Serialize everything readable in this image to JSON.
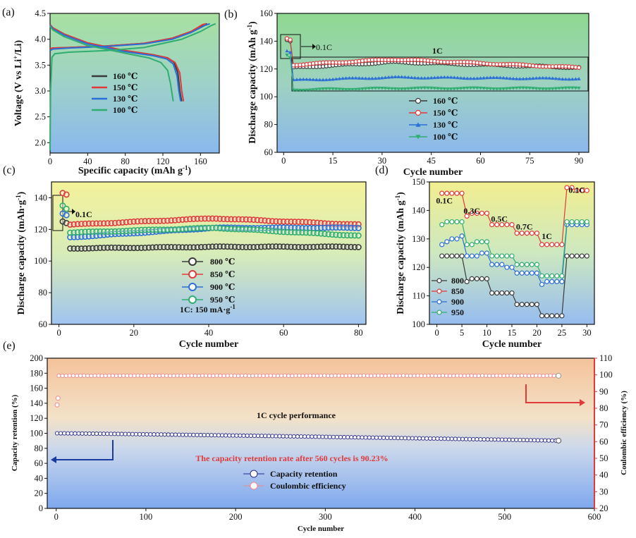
{
  "panels": {
    "a": "(a)",
    "b": "(b)",
    "c": "(c)",
    "d": "(d)",
    "e": "(e)"
  },
  "colors": {
    "160": "#3a3a3a",
    "150": "#e03a3a",
    "130": "#2a6fd6",
    "100": "#2fae6f",
    "800": "#3a3a3a",
    "850": "#e03a3a",
    "900": "#2a6fd6",
    "950": "#2fae6f",
    "retention": "#2a2a8c",
    "ce": "#f08a8a",
    "blueArrow": "#1a3aa0",
    "redAxis": "#e03a3a"
  },
  "chart_data": [
    {
      "id": "a",
      "type": "line",
      "title": "",
      "xlabel": "Specific capacity (mAh g",
      "xlabel_sup": "-1",
      "ylabel": "Voltage (V vs Li",
      "ylabel_sup": "+",
      "ylabel_tail": "/Li)",
      "xlim": [
        0,
        180
      ],
      "ylim": [
        1.8,
        4.5
      ],
      "xticks": [
        0,
        40,
        80,
        120,
        160
      ],
      "yticks": [
        2.0,
        2.5,
        3.0,
        3.5,
        4.0,
        4.5
      ],
      "xtick_labels": [
        "0",
        "40",
        "80",
        "120",
        "160"
      ],
      "ytick_labels": [
        "2.0",
        "2.5",
        "3.0",
        "3.5",
        "4.0",
        "4.5"
      ],
      "legend": [
        "160 ℃",
        "150 ℃",
        "130 ℃",
        "100 ℃"
      ],
      "series": [
        {
          "name": "160 ℃",
          "key": "160",
          "charge": [
            [
              0,
              3.82
            ],
            [
              3,
              3.83
            ],
            [
              20,
              3.84
            ],
            [
              60,
              3.87
            ],
            [
              100,
              3.92
            ],
            [
              130,
              4.02
            ],
            [
              150,
              4.15
            ],
            [
              163,
              4.28
            ],
            [
              167,
              4.3
            ]
          ],
          "discharge": [
            [
              0,
              4.28
            ],
            [
              3,
              4.22
            ],
            [
              15,
              4.1
            ],
            [
              40,
              3.93
            ],
            [
              80,
              3.78
            ],
            [
              110,
              3.7
            ],
            [
              125,
              3.64
            ],
            [
              132,
              3.55
            ],
            [
              136,
              3.35
            ],
            [
              138,
              3.0
            ],
            [
              140,
              2.8
            ]
          ]
        },
        {
          "name": "150 ℃",
          "key": "150",
          "charge": [
            [
              0,
              3.82
            ],
            [
              3,
              3.83
            ],
            [
              20,
              3.84
            ],
            [
              60,
              3.87
            ],
            [
              100,
              3.92
            ],
            [
              130,
              4.02
            ],
            [
              150,
              4.15
            ],
            [
              162,
              4.28
            ],
            [
              166,
              4.3
            ]
          ],
          "discharge": [
            [
              0,
              4.28
            ],
            [
              3,
              4.22
            ],
            [
              15,
              4.1
            ],
            [
              40,
              3.93
            ],
            [
              80,
              3.78
            ],
            [
              110,
              3.7
            ],
            [
              125,
              3.64
            ],
            [
              133,
              3.55
            ],
            [
              138,
              3.35
            ],
            [
              140,
              3.0
            ],
            [
              142,
              2.8
            ]
          ]
        },
        {
          "name": "130 ℃",
          "key": "130",
          "charge": [
            [
              0,
              3.78
            ],
            [
              3,
              3.81
            ],
            [
              20,
              3.83
            ],
            [
              60,
              3.86
            ],
            [
              100,
              3.91
            ],
            [
              130,
              4.0
            ],
            [
              150,
              4.13
            ],
            [
              165,
              4.27
            ],
            [
              170,
              4.3
            ]
          ],
          "discharge": [
            [
              0,
              4.27
            ],
            [
              3,
              4.2
            ],
            [
              15,
              4.08
            ],
            [
              40,
              3.91
            ],
            [
              80,
              3.76
            ],
            [
              110,
              3.68
            ],
            [
              124,
              3.62
            ],
            [
              131,
              3.52
            ],
            [
              135,
              3.3
            ],
            [
              137,
              3.0
            ],
            [
              139,
              2.8
            ]
          ]
        },
        {
          "name": "100 ℃",
          "key": "100",
          "charge": [
            [
              0,
              1.85
            ],
            [
              0.5,
              3.0
            ],
            [
              2,
              3.65
            ],
            [
              5,
              3.72
            ],
            [
              20,
              3.75
            ],
            [
              60,
              3.78
            ],
            [
              100,
              3.84
            ],
            [
              140,
              4.0
            ],
            [
              160,
              4.15
            ],
            [
              172,
              4.27
            ],
            [
              176,
              4.3
            ]
          ],
          "discharge": [
            [
              0,
              4.25
            ],
            [
              3,
              4.18
            ],
            [
              15,
              4.05
            ],
            [
              40,
              3.88
            ],
            [
              80,
              3.73
            ],
            [
              105,
              3.64
            ],
            [
              118,
              3.55
            ],
            [
              125,
              3.4
            ],
            [
              128,
              3.15
            ],
            [
              130,
              2.92
            ],
            [
              131,
              2.8
            ]
          ]
        }
      ]
    },
    {
      "id": "b",
      "type": "line",
      "xlabel": "Cycle number",
      "ylabel": "Discharge capacity (mAh g",
      "ylabel_sup": "-1",
      "xlim": [
        -2,
        93
      ],
      "ylim": [
        60,
        160
      ],
      "xticks": [
        0,
        15,
        30,
        45,
        60,
        75,
        90
      ],
      "yticks": [
        60,
        80,
        100,
        120,
        140,
        160
      ],
      "xtick_labels": [
        "0",
        "15",
        "30",
        "45",
        "60",
        "75",
        "90"
      ],
      "ytick_labels": [
        "60",
        "80",
        "100",
        "120",
        "140",
        "160"
      ],
      "annotations": {
        "rate1": "0.1C",
        "rate2": "1C"
      },
      "legend": [
        "160 ℃",
        "150 ℃",
        "130 ℃",
        "100 ℃"
      ],
      "series": [
        {
          "name": "160 ℃",
          "key": "160",
          "first": [
            141,
            140
          ],
          "start": 121,
          "plateau": 125,
          "end": 121,
          "marker": "circle"
        },
        {
          "name": "150 ℃",
          "key": "150",
          "first": [
            142,
            141
          ],
          "start": 123,
          "plateau": 127,
          "end": 121,
          "marker": "circle"
        },
        {
          "name": "130 ℃",
          "key": "130",
          "first": [
            133,
            132
          ],
          "start": 112,
          "plateau": 114,
          "end": 113,
          "marker": "triangle"
        },
        {
          "name": "100 ℃",
          "key": "100",
          "first": [
            130,
            128
          ],
          "start": 105,
          "plateau": 106,
          "end": 106,
          "marker": "invtriangle"
        }
      ]
    },
    {
      "id": "c",
      "type": "scatter",
      "xlabel": "Cycle number",
      "ylabel": "Discharge capacity (mAh·g",
      "ylabel_sup": "-1",
      "ylabel_tail": ")",
      "xlim": [
        -2,
        82
      ],
      "ylim": [
        60,
        150
      ],
      "xticks": [
        0,
        20,
        40,
        60,
        80
      ],
      "yticks": [
        60,
        80,
        100,
        120,
        140
      ],
      "xtick_labels": [
        "0",
        "20",
        "40",
        "60",
        "80"
      ],
      "ytick_labels": [
        "60",
        "80",
        "100",
        "120",
        "140"
      ],
      "annotations": {
        "rate": "0.1C",
        "note": "1C: 150 mA·g"
      },
      "legend": [
        "800 ℃",
        "850 ℃",
        "900 ℃",
        "950 ℃"
      ],
      "series": [
        {
          "name": "800 ℃",
          "key": "800",
          "first": [
            125,
            124
          ],
          "start": 108,
          "mid": 109,
          "end": 109
        },
        {
          "name": "850 ℃",
          "key": "850",
          "first": [
            143,
            142
          ],
          "start": 123,
          "mid": 127,
          "end": 123
        },
        {
          "name": "900 ℃",
          "key": "900",
          "first": [
            130,
            129
          ],
          "start": 115,
          "mid": 121,
          "end": 121
        },
        {
          "name": "950 ℃",
          "key": "950",
          "first": [
            135,
            133
          ],
          "start": 118,
          "mid": 121,
          "end": 116
        }
      ]
    },
    {
      "id": "d",
      "type": "line",
      "xlabel": "Cycle number",
      "ylabel": "Discharge capacity (mAh g",
      "ylabel_sup": "-1",
      "xlim": [
        -1.5,
        31.5
      ],
      "ylim": [
        100,
        150
      ],
      "xticks": [
        0,
        5,
        10,
        15,
        20,
        25,
        30
      ],
      "yticks": [
        100,
        110,
        120,
        130,
        140,
        150
      ],
      "xtick_labels": [
        "0",
        "5",
        "10",
        "15",
        "20",
        "25",
        "30"
      ],
      "ytick_labels": [
        "100",
        "110",
        "120",
        "130",
        "140",
        "150"
      ],
      "rate_labels": [
        "0.1C",
        "0.3C",
        "0.5C",
        "0.7C",
        "1C",
        "0.1C"
      ],
      "legend": [
        "800",
        "850",
        "900",
        "950"
      ],
      "series": [
        {
          "name": "800",
          "key": "800",
          "values": [
            124,
            124,
            124,
            124,
            124,
            115,
            116,
            116,
            116,
            116,
            111,
            111,
            111,
            111,
            111,
            107,
            107,
            107,
            107,
            107,
            103,
            103,
            103,
            103,
            103,
            124,
            124,
            124,
            124,
            124
          ]
        },
        {
          "name": "850",
          "key": "850",
          "values": [
            146,
            146,
            146,
            146,
            146,
            138,
            139,
            139,
            139,
            139,
            135,
            135,
            135,
            135,
            135,
            132,
            132,
            132,
            132,
            132,
            128,
            128,
            128,
            128,
            128,
            148,
            148,
            147,
            147,
            147
          ]
        },
        {
          "name": "900",
          "key": "900",
          "values": [
            128,
            129,
            130,
            130,
            131,
            124,
            124,
            124,
            125,
            125,
            121,
            121,
            121,
            120,
            120,
            118,
            118,
            118,
            118,
            118,
            114,
            115,
            115,
            115,
            115,
            135,
            135,
            135,
            135,
            135
          ]
        },
        {
          "name": "950",
          "key": "950",
          "values": [
            135,
            136,
            136,
            136,
            136,
            128,
            128,
            129,
            129,
            129,
            124,
            124,
            124,
            124,
            124,
            121,
            121,
            121,
            121,
            121,
            117,
            117,
            117,
            117,
            117,
            136,
            136,
            136,
            136,
            136
          ]
        }
      ]
    },
    {
      "id": "e",
      "type": "line",
      "xlabel": "Cycle number",
      "ylabel": "Capacity retention (%)",
      "ylabel_right": "Coulombic efficiency (%)",
      "xlim": [
        -10,
        600
      ],
      "ylim": [
        0,
        200
      ],
      "ylim_right": [
        20,
        110
      ],
      "xticks": [
        0,
        100,
        200,
        300,
        400,
        500,
        600
      ],
      "yticks": [
        0,
        20,
        40,
        60,
        80,
        100,
        120,
        140,
        160,
        180,
        200
      ],
      "yticks_right": [
        20,
        30,
        40,
        50,
        60,
        70,
        80,
        90,
        100,
        110
      ],
      "xtick_labels": [
        "0",
        "100",
        "200",
        "300",
        "400",
        "500",
        "600"
      ],
      "ytick_labels": [
        "0",
        "20",
        "40",
        "60",
        "80",
        "100",
        "120",
        "140",
        "160",
        "180",
        "200"
      ],
      "ytick_labels_right": [
        "20",
        "30",
        "40",
        "50",
        "60",
        "70",
        "80",
        "90",
        "100",
        "110"
      ],
      "annotations": {
        "title": "1C cycle performance",
        "retention_text": "The capacity retention rate after 560 cycles is 90.23%"
      },
      "legend": [
        "Capacity retention",
        "Coulombic efficiency"
      ],
      "series": [
        {
          "name": "Capacity retention",
          "key": "retention",
          "start": 100,
          "end": 90.23,
          "n": 560
        },
        {
          "name": "Coulombic efficiency",
          "key": "ce",
          "first": [
            82,
            86
          ],
          "plateau": 99.5,
          "n": 560
        }
      ]
    }
  ]
}
